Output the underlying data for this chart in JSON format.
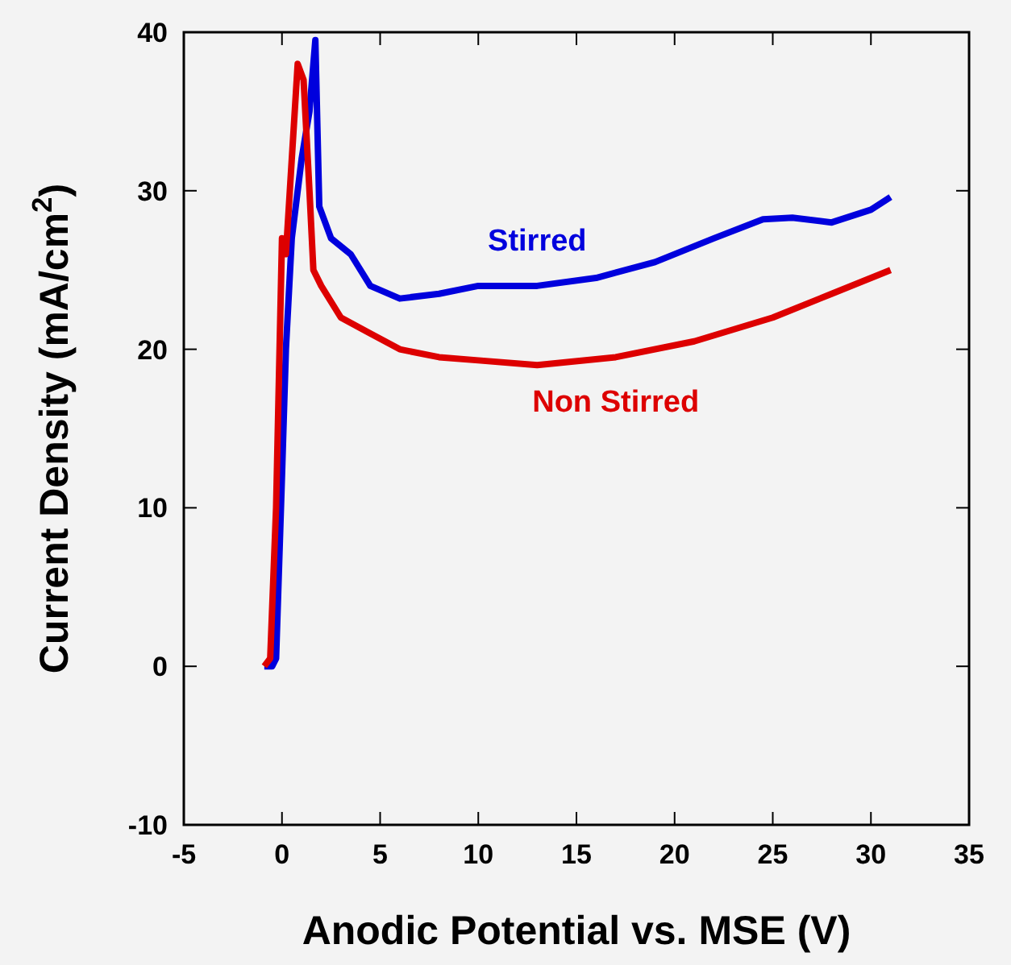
{
  "chart_data": {
    "type": "line",
    "xlabel": "Anodic Potential vs. MSE (V)",
    "ylabel": "Current Density (mA/cm$^{2}$)",
    "xlim": [
      -5,
      35
    ],
    "ylim": [
      -10,
      40
    ],
    "xticks": [
      -5,
      0,
      5,
      10,
      15,
      20,
      25,
      30,
      35
    ],
    "yticks": [
      -10,
      0,
      10,
      20,
      30,
      40
    ],
    "grid": false,
    "legend": false,
    "marker": "none",
    "line_style": "solid",
    "series": [
      {
        "name": "Stirred",
        "color": "#0000dd",
        "x": [
          -0.9,
          -0.5,
          -0.3,
          0,
          0.2,
          0.5,
          1,
          1.4,
          1.7,
          1.9,
          2.5,
          3.5,
          4.5,
          6,
          8,
          10,
          13,
          16,
          19,
          22,
          24.5,
          26,
          28,
          30,
          31
        ],
        "values": [
          0,
          0,
          0.5,
          12,
          20,
          27,
          32,
          35,
          39.5,
          29,
          27,
          26,
          24,
          23.2,
          23.5,
          24,
          24,
          24.5,
          25.5,
          27,
          28.2,
          28.3,
          28,
          28.8,
          29.6
        ]
      },
      {
        "name": "Non Stirred",
        "color": "#dd0000",
        "x": [
          -0.9,
          -0.6,
          -0.3,
          0,
          0.2,
          0.4,
          0.8,
          1.1,
          1.4,
          1.6,
          2,
          3,
          4.5,
          6,
          8,
          10,
          13,
          17,
          21,
          25,
          28,
          31
        ],
        "values": [
          0,
          0.5,
          10,
          27,
          26,
          30,
          38,
          37,
          30,
          25,
          24,
          22,
          21,
          20,
          19.5,
          19.3,
          19,
          19.5,
          20.5,
          22,
          23.5,
          25
        ]
      }
    ]
  }
}
